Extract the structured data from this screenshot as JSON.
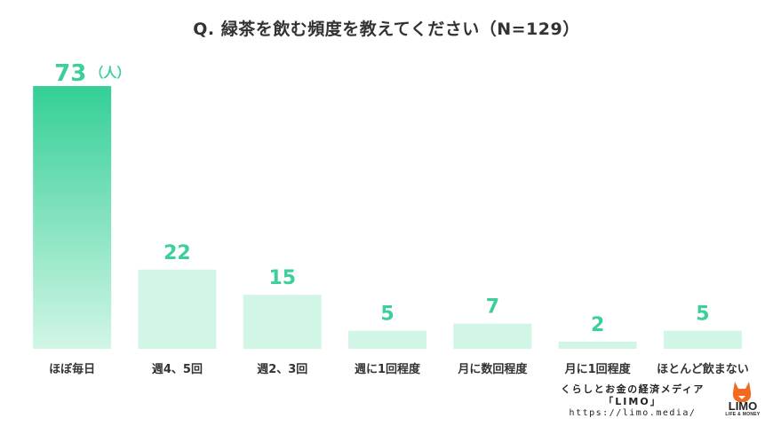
{
  "title": "Q. 緑茶を飲む頻度を教えてください（N=129）",
  "chart_data": {
    "type": "bar",
    "categories": [
      "ほぼ毎日",
      "週4、5回",
      "週2、3回",
      "週に1回程度",
      "月に数回程度",
      "月に1回程度",
      "ほとんど飲まない"
    ],
    "values": [
      73,
      22,
      15,
      5,
      7,
      2,
      5
    ],
    "unit_label": "（人）",
    "ylim": [
      0,
      73
    ],
    "grid": false,
    "colors": {
      "highlight_top": "#34cf96",
      "highlight_bottom": "#d2f6e6",
      "bar": "#d2f6e6",
      "value_label": "#3dcf98",
      "category_label": "#333333"
    }
  },
  "brand": {
    "tagline": "くらしとお金の経済メディア",
    "name": "「LIMO」",
    "url": "https://limo.media/",
    "logo_text": "LIMO",
    "logo_subtext": "LIFE & MONEY"
  }
}
